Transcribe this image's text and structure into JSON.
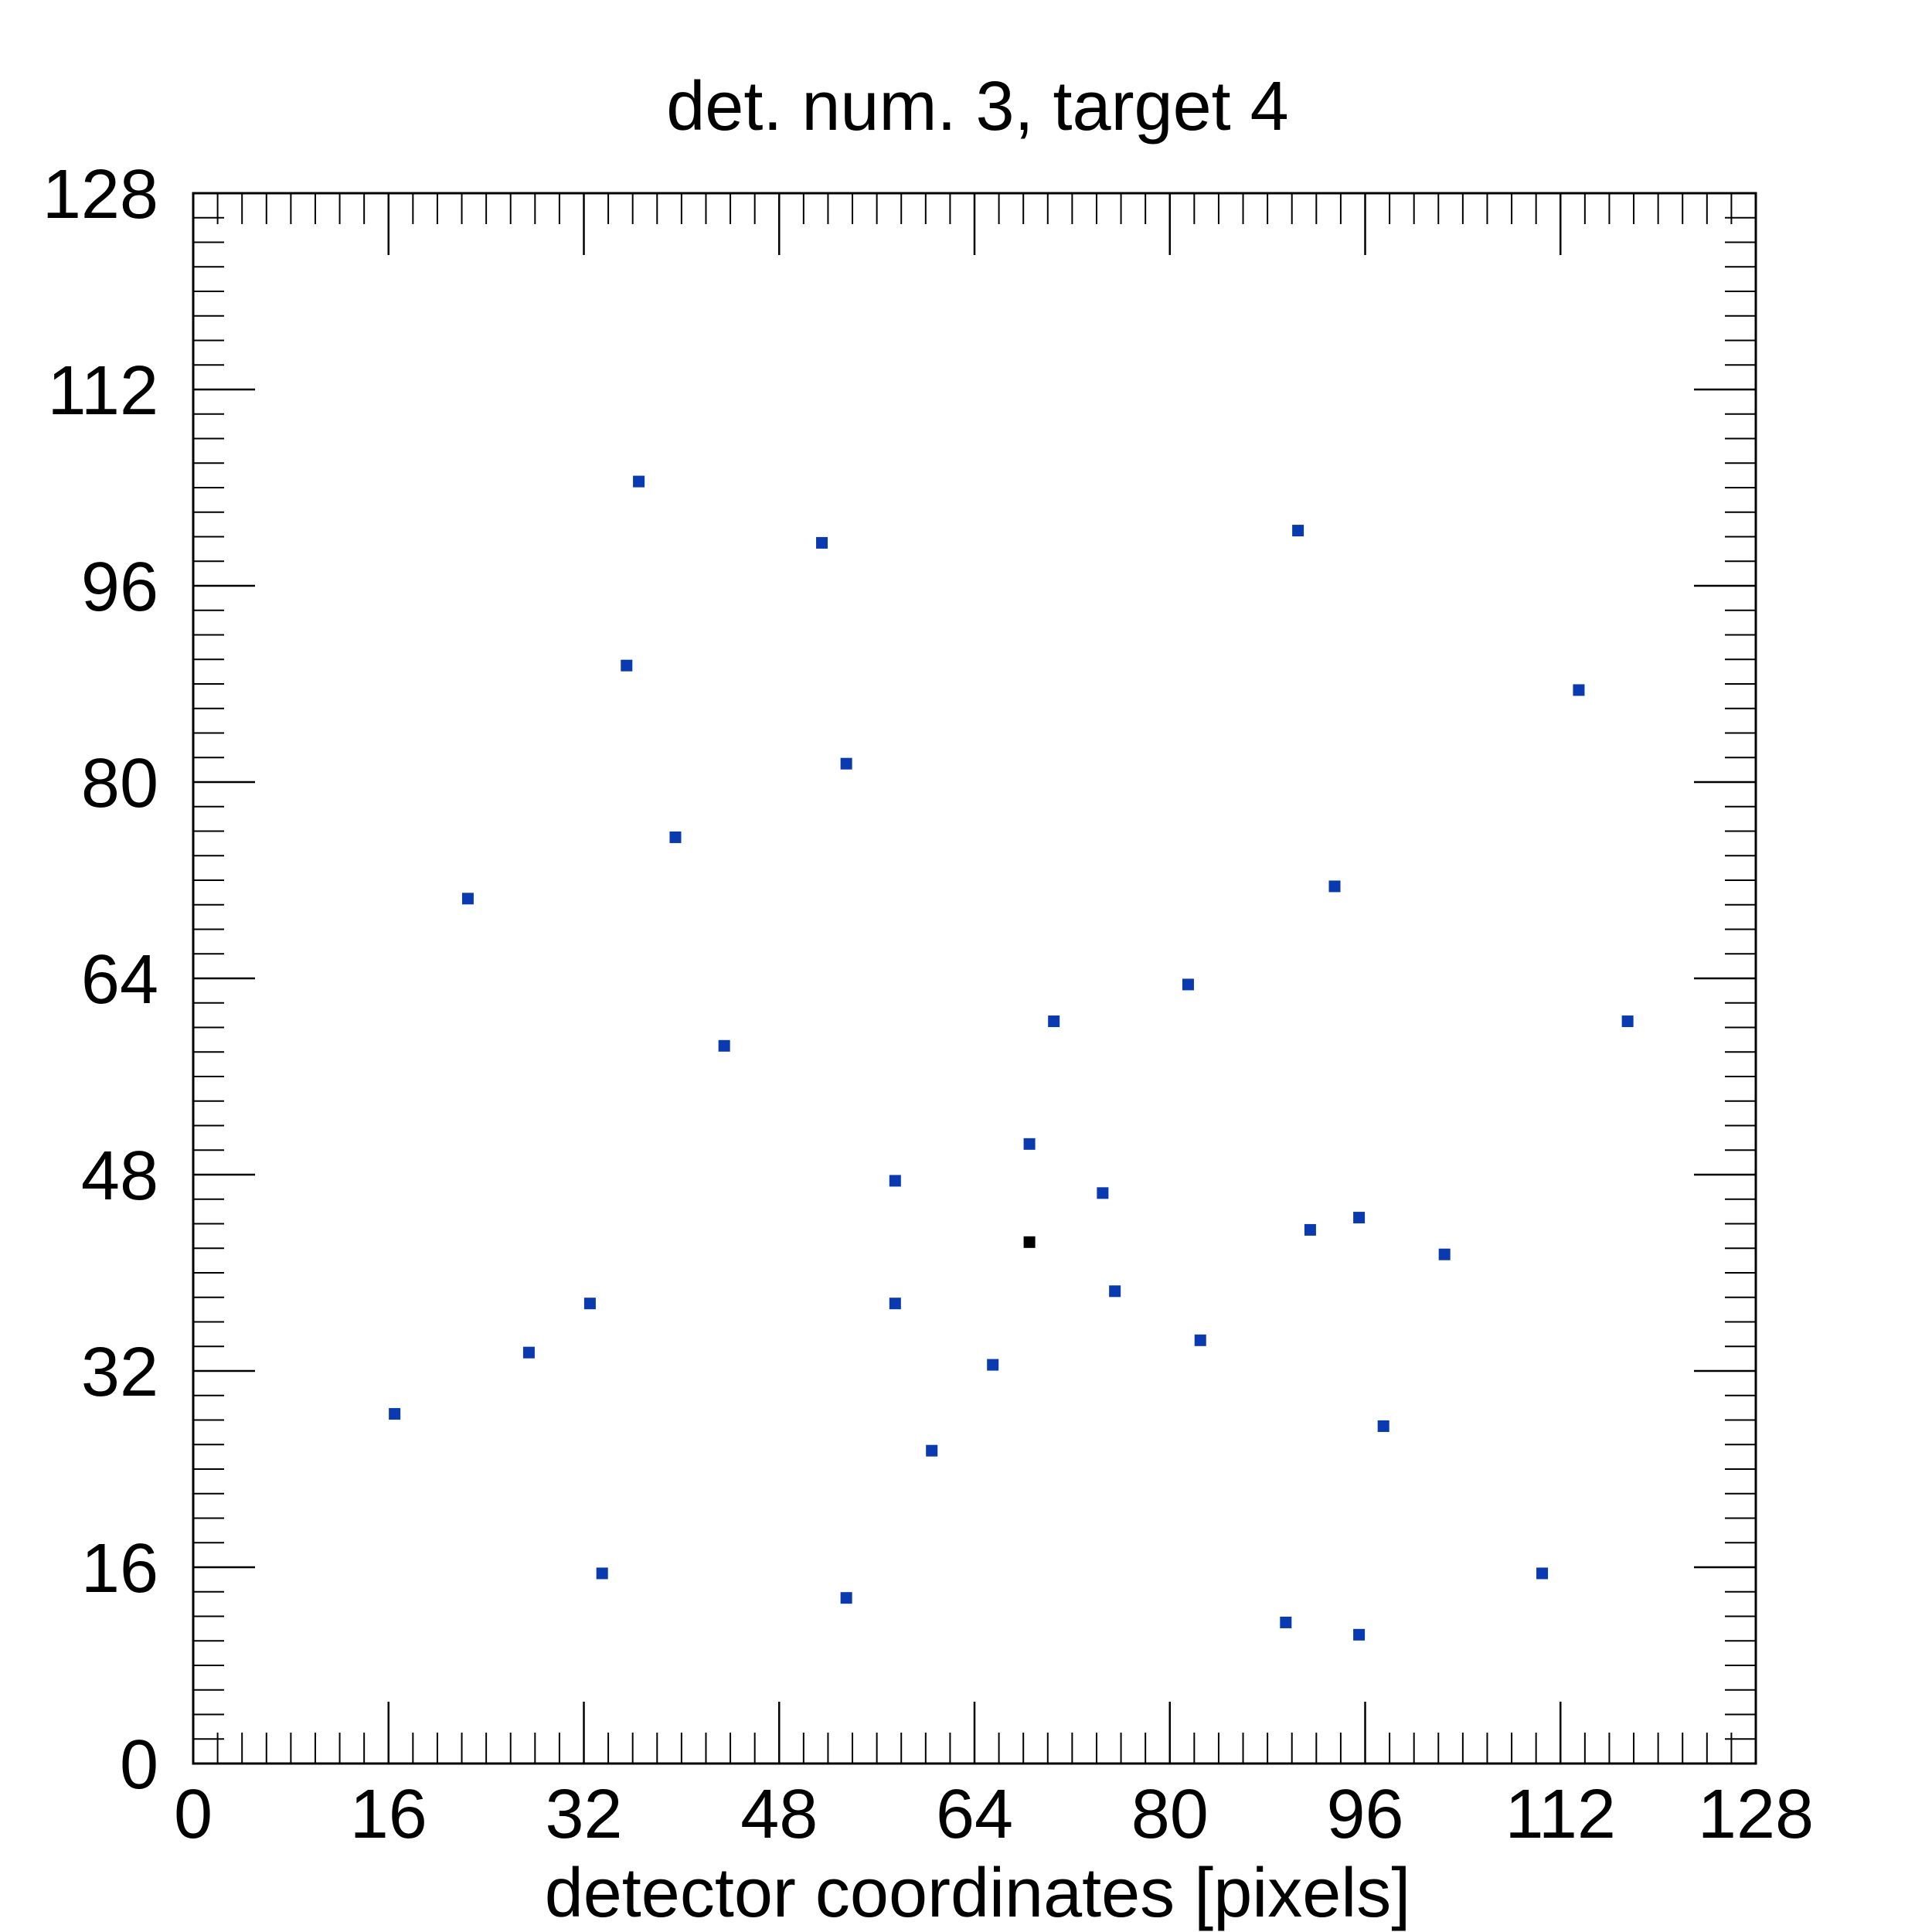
{
  "chart_data": {
    "type": "scatter",
    "title": "det. num. 3, target 4",
    "xlabel": "detector coordinates [pixels]",
    "ylabel": "",
    "xlim": [
      0,
      128
    ],
    "ylim": [
      0,
      128
    ],
    "xticks": [
      0,
      16,
      32,
      48,
      64,
      80,
      96,
      112,
      128
    ],
    "yticks": [
      0,
      16,
      32,
      48,
      64,
      80,
      96,
      112,
      128
    ],
    "minor_tick_step": 2,
    "grid": false,
    "colors": {
      "points": "#0a3ab0",
      "highlight": "#000000"
    },
    "points": [
      [
        36.5,
        104.5
      ],
      [
        51.5,
        99.5
      ],
      [
        90.5,
        100.5
      ],
      [
        35.5,
        89.5
      ],
      [
        113.5,
        87.5
      ],
      [
        53.5,
        81.5
      ],
      [
        39.5,
        75.5
      ],
      [
        22.5,
        70.5
      ],
      [
        93.5,
        71.5
      ],
      [
        81.5,
        63.5
      ],
      [
        70.5,
        60.5
      ],
      [
        117.5,
        60.5
      ],
      [
        43.5,
        58.5
      ],
      [
        68.5,
        50.5
      ],
      [
        57.5,
        47.5
      ],
      [
        74.5,
        46.5
      ],
      [
        95.5,
        44.5
      ],
      [
        91.5,
        43.5
      ],
      [
        102.5,
        41.5
      ],
      [
        75.5,
        38.5
      ],
      [
        32.5,
        37.5
      ],
      [
        57.5,
        37.5
      ],
      [
        82.5,
        34.5
      ],
      [
        27.5,
        33.5
      ],
      [
        65.5,
        32.5
      ],
      [
        16.5,
        28.5
      ],
      [
        97.5,
        27.5
      ],
      [
        60.5,
        25.5
      ],
      [
        33.5,
        15.5
      ],
      [
        110.5,
        15.5
      ],
      [
        53.5,
        13.5
      ],
      [
        89.5,
        11.5
      ],
      [
        95.5,
        10.5
      ]
    ],
    "highlight_points": [
      [
        68.5,
        42.5
      ]
    ]
  }
}
